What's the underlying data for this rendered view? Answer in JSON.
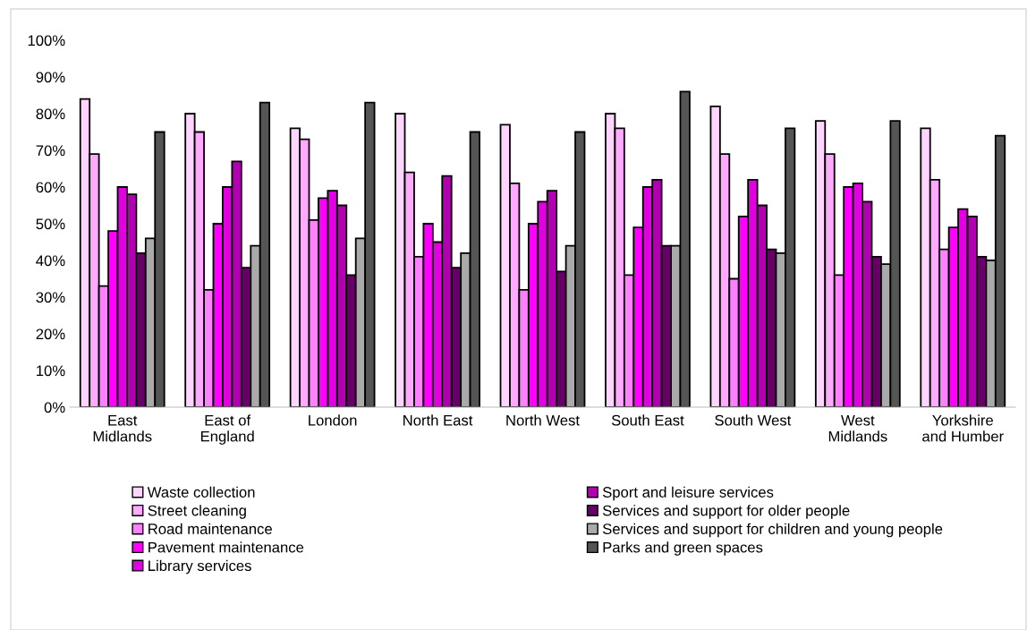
{
  "chart_data": {
    "type": "bar",
    "categories": [
      "East\nMidlands",
      "East of\nEngland",
      "London",
      "North East",
      "North West",
      "South East",
      "South West",
      "West\nMidlands",
      "Yorkshire\nand Humber"
    ],
    "series": [
      {
        "name": "Waste collection",
        "color": "#ffd5ff",
        "values": [
          84,
          80,
          76,
          80,
          77,
          80,
          82,
          78,
          76
        ]
      },
      {
        "name": "Street cleaning",
        "color": "#ffa9ff",
        "values": [
          69,
          75,
          73,
          64,
          61,
          76,
          69,
          69,
          62
        ]
      },
      {
        "name": "Road maintenance",
        "color": "#ff80ff",
        "values": [
          33,
          32,
          51,
          41,
          32,
          36,
          35,
          36,
          43
        ]
      },
      {
        "name": "Pavement maintenance",
        "color": "#ff00ff",
        "values": [
          48,
          50,
          57,
          50,
          50,
          49,
          52,
          60,
          49
        ]
      },
      {
        "name": "Library services",
        "color": "#e000e0",
        "values": [
          60,
          60,
          59,
          45,
          56,
          60,
          62,
          61,
          54
        ]
      },
      {
        "name": "Sport and leisure services",
        "color": "#b000b0",
        "values": [
          58,
          67,
          55,
          63,
          59,
          62,
          55,
          56,
          52
        ]
      },
      {
        "name": "Services and support for older people",
        "color": "#660066",
        "values": [
          42,
          38,
          36,
          38,
          37,
          44,
          43,
          41,
          41
        ]
      },
      {
        "name": "Services and support for children and young people",
        "color": "#aaaaaa",
        "values": [
          46,
          44,
          46,
          42,
          44,
          44,
          42,
          39,
          40
        ]
      },
      {
        "name": "Parks and green spaces",
        "color": "#555555",
        "values": [
          75,
          83,
          83,
          75,
          75,
          86,
          76,
          78,
          74
        ]
      }
    ],
    "ylim": [
      0,
      100
    ],
    "yticks": [
      {
        "value": 0,
        "label": "0%"
      },
      {
        "value": 10,
        "label": "10%"
      },
      {
        "value": 20,
        "label": "20%"
      },
      {
        "value": 30,
        "label": "30%"
      },
      {
        "value": 40,
        "label": "40%"
      },
      {
        "value": 50,
        "label": "50%"
      },
      {
        "value": 60,
        "label": "60%"
      },
      {
        "value": 70,
        "label": "70%"
      },
      {
        "value": 80,
        "label": "80%"
      },
      {
        "value": 90,
        "label": "90%"
      },
      {
        "value": 100,
        "label": "100%"
      }
    ],
    "grid": false,
    "legend": "bottom"
  }
}
